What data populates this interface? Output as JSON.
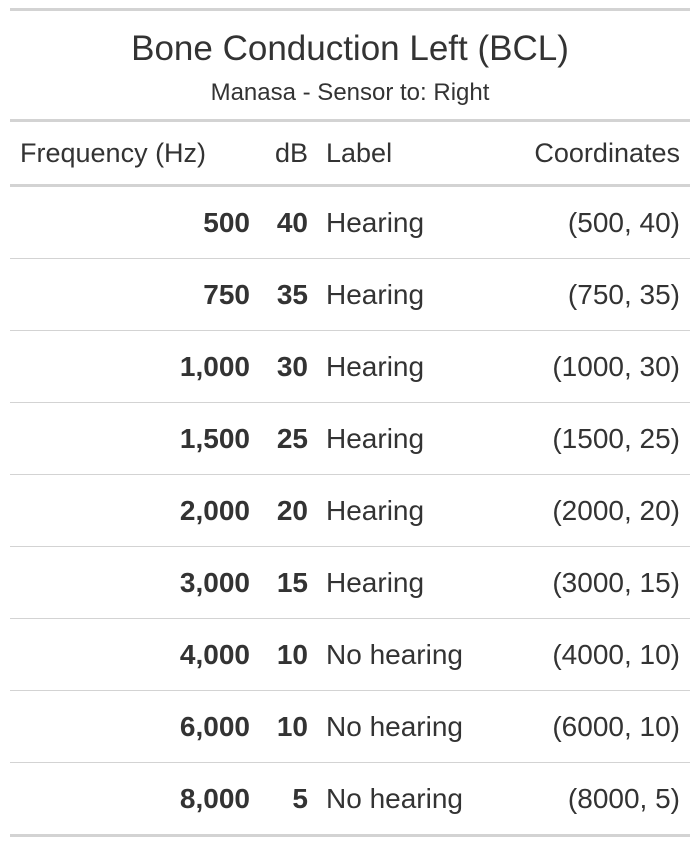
{
  "table": {
    "title": "Bone Conduction Left (BCL)",
    "subtitle": "Manasa - Sensor to: Right",
    "columns": {
      "frequency": "Frequency (Hz)",
      "db": "dB",
      "label": "Label",
      "coordinates": "Coordinates"
    },
    "rows": [
      {
        "frequency": "500",
        "db": "40",
        "label": "Hearing",
        "coordinates": "(500, 40)"
      },
      {
        "frequency": "750",
        "db": "35",
        "label": "Hearing",
        "coordinates": "(750, 35)"
      },
      {
        "frequency": "1,000",
        "db": "30",
        "label": "Hearing",
        "coordinates": "(1000, 30)"
      },
      {
        "frequency": "1,500",
        "db": "25",
        "label": "Hearing",
        "coordinates": "(1500, 25)"
      },
      {
        "frequency": "2,000",
        "db": "20",
        "label": "Hearing",
        "coordinates": "(2000, 20)"
      },
      {
        "frequency": "3,000",
        "db": "15",
        "label": "Hearing",
        "coordinates": "(3000, 15)"
      },
      {
        "frequency": "4,000",
        "db": "10",
        "label": "No hearing",
        "coordinates": "(4000, 10)"
      },
      {
        "frequency": "6,000",
        "db": "10",
        "label": "No hearing",
        "coordinates": "(6000, 10)"
      },
      {
        "frequency": "8,000",
        "db": "5",
        "label": "No hearing",
        "coordinates": "(8000, 5)"
      }
    ]
  },
  "colors": {
    "text": "#333333",
    "rule": "#d3d3d3",
    "background": "#ffffff"
  }
}
